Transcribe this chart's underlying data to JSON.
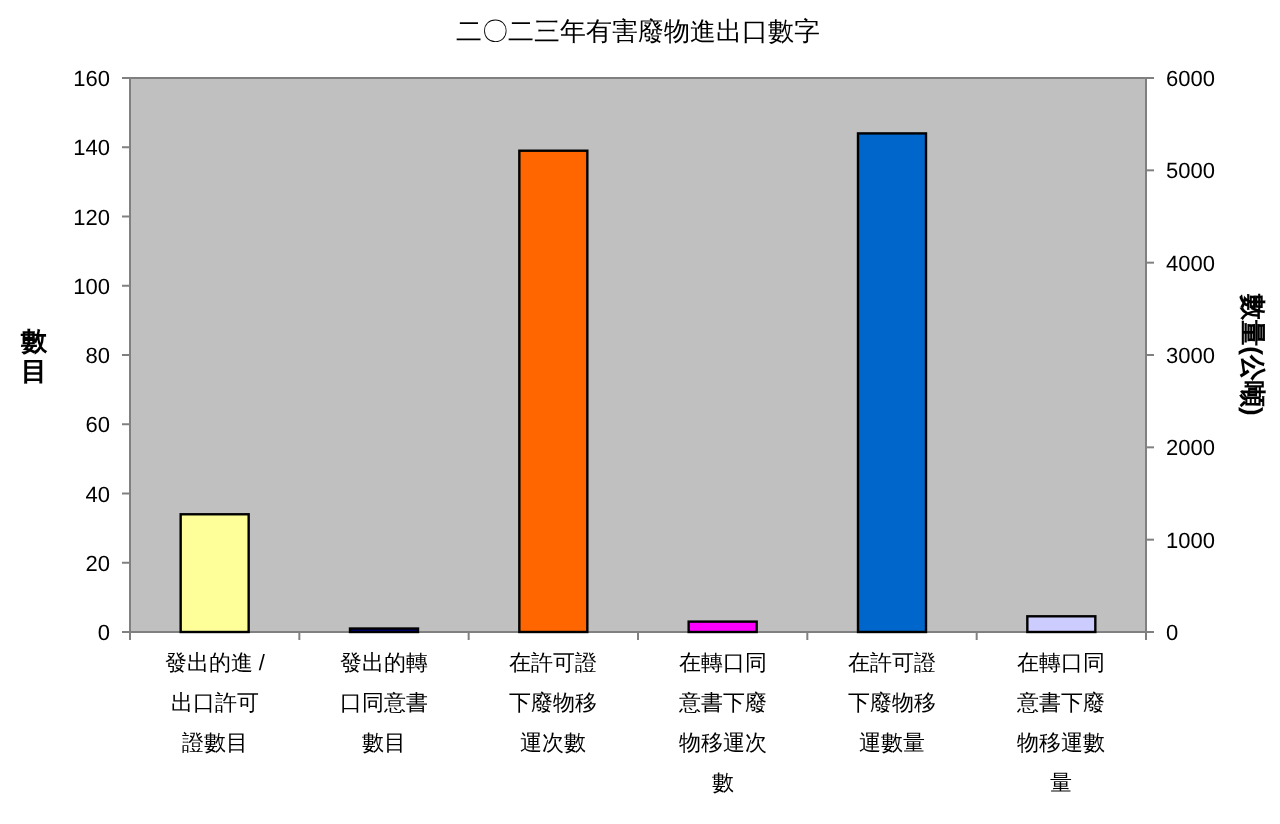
{
  "chart_data": {
    "type": "bar",
    "title": "二〇二三年有害廢物進出口數字",
    "ylabel": "數目",
    "y2label": "數量(公噸)",
    "categories": [
      "發出的進 / 出口許可證數目",
      "發出的轉口同意書數目",
      "在許可證下廢物移運次數",
      "在轉口同意書下廢物移運次數",
      "在許可證下廢物移運數量",
      "在轉口同意書下廢物移運數量"
    ],
    "series": [
      {
        "values": [
          34,
          1,
          139,
          3,
          null,
          null
        ],
        "colors": [
          "#ffff99",
          "#000080",
          "#ff6600",
          "#ff00ff",
          null,
          null
        ]
      },
      {
        "axis": "y2",
        "values": [
          null,
          null,
          null,
          null,
          5400,
          170
        ],
        "colors": [
          null,
          null,
          null,
          null,
          "#0066cc",
          "#ccccff"
        ]
      }
    ],
    "ylim": [
      0,
      160
    ],
    "yticks": [
      0,
      20,
      40,
      60,
      80,
      100,
      120,
      140,
      160
    ],
    "y2lim": [
      0,
      6000
    ],
    "y2ticks": [
      0,
      1000,
      2000,
      3000,
      4000,
      5000,
      6000
    ],
    "grid": false
  }
}
